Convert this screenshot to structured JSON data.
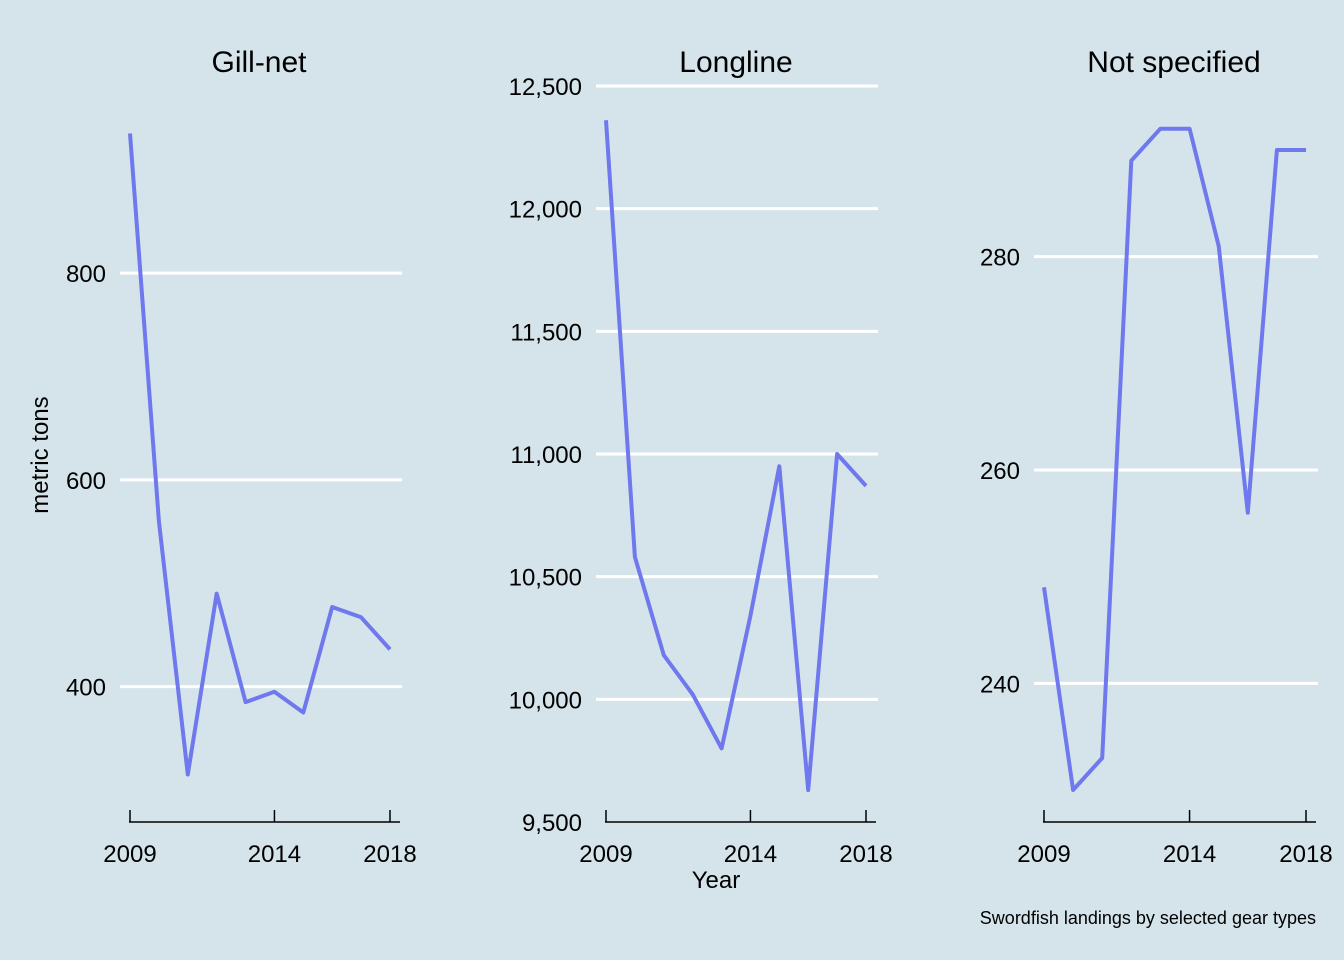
{
  "chart_data": {
    "type": "line",
    "caption": "Swordfish landings by selected gear types",
    "xlabel": "Year",
    "ylabel": "metric tons",
    "grid": "horizontal",
    "series_color": "#6f78ec",
    "gridline_color": "#ffffff",
    "background_color": "#d5e4eb",
    "panels": [
      {
        "name": "Gill-net",
        "x": [
          2009,
          2010,
          2011,
          2012,
          2013,
          2014,
          2015,
          2016,
          2017,
          2018
        ],
        "y": [
          935,
          560,
          315,
          490,
          385,
          395,
          375,
          477,
          467,
          436
        ],
        "ylim": [
          300,
          950
        ],
        "yticks": [
          400,
          600,
          800
        ],
        "ytick_labels": [
          "400",
          "600",
          "800"
        ],
        "xticks": [
          2009,
          2014,
          2018
        ],
        "xtick_labels": [
          "2009",
          "2014",
          "2018"
        ],
        "show_ylabel": true,
        "show_xlabel": false
      },
      {
        "name": "Longline",
        "x": [
          2009,
          2010,
          2011,
          2012,
          2013,
          2014,
          2015,
          2016,
          2017,
          2018
        ],
        "y": [
          12360,
          10580,
          10180,
          10020,
          9800,
          10340,
          10950,
          9630,
          11000,
          10870
        ],
        "ylim": [
          9500,
          12500
        ],
        "yticks": [
          9500,
          10000,
          10500,
          11000,
          11500,
          12000,
          12500
        ],
        "ytick_labels": [
          "9,500",
          "10,000",
          "10,500",
          "11,000",
          "11,500",
          "12,000",
          "12,500"
        ],
        "xticks": [
          2009,
          2014,
          2018
        ],
        "xtick_labels": [
          "2009",
          "2014",
          "2018"
        ],
        "show_ylabel": false,
        "show_xlabel": true
      },
      {
        "name": "Not specified",
        "x": [
          2009,
          2010,
          2011,
          2012,
          2013,
          2014,
          2015,
          2016,
          2017,
          2018
        ],
        "y": [
          249,
          230,
          233,
          289,
          292,
          292,
          281,
          256,
          290,
          290
        ],
        "ylim": [
          230,
          293
        ],
        "yticks": [
          240,
          260,
          280
        ],
        "ytick_labels": [
          "240",
          "260",
          "280"
        ],
        "xticks": [
          2009,
          2014,
          2018
        ],
        "xtick_labels": [
          "2009",
          "2014",
          "2018"
        ],
        "show_ylabel": false,
        "show_xlabel": false
      }
    ]
  }
}
